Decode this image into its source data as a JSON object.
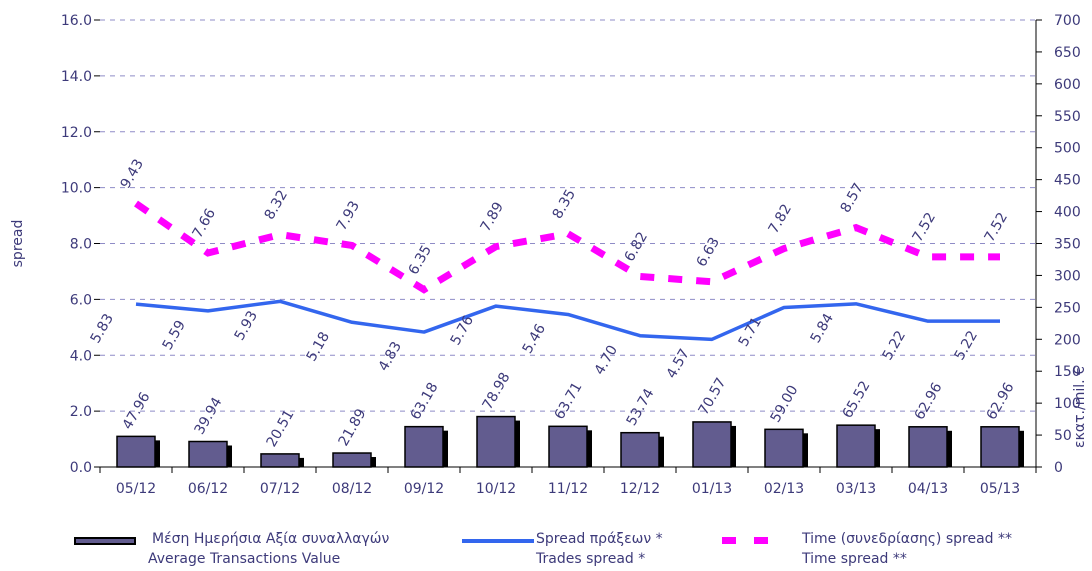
{
  "chart_data": {
    "type": "bar+line",
    "categories": [
      "05/12",
      "06/12",
      "07/12",
      "08/12",
      "09/12",
      "10/12",
      "11/12",
      "12/12",
      "01/13",
      "02/13",
      "03/13",
      "04/13",
      "05/13"
    ],
    "y_left_label": "spread",
    "y_left_ticks": [
      "0.0",
      "2.0",
      "4.0",
      "6.0",
      "8.0",
      "10.0",
      "12.0",
      "14.0",
      "16.0"
    ],
    "y_left_range": [
      0,
      16
    ],
    "y_right_label": "εκατ./mil. €",
    "y_right_ticks": [
      "0",
      "50",
      "100",
      "150",
      "200",
      "250",
      "300",
      "350",
      "400",
      "450",
      "500",
      "550",
      "600",
      "650",
      "700"
    ],
    "y_right_range": [
      0,
      700
    ],
    "grid": "horizontal dashed",
    "series": [
      {
        "name": "Μέση Ημερήσια Αξία συναλλαγών / Average Transactions Value",
        "kind": "bar",
        "axis": "right",
        "color": "#625c8f",
        "values": [
          47.96,
          39.94,
          20.51,
          21.89,
          63.18,
          78.98,
          63.71,
          53.74,
          70.57,
          59.0,
          65.52,
          62.96,
          62.96
        ],
        "labels": [
          "47.96",
          "39.94",
          "20.51",
          "21.89",
          "63.18",
          "78.98",
          "63.71",
          "53.74",
          "70.57",
          "59.00",
          "65.52",
          "62.96",
          "62.96"
        ]
      },
      {
        "name": "Spread πράξεων * / Trades spread *",
        "kind": "line",
        "axis": "left",
        "color": "#3366ee",
        "values": [
          5.83,
          5.59,
          5.93,
          5.18,
          4.83,
          5.76,
          5.46,
          4.7,
          4.57,
          5.71,
          5.84,
          5.22,
          5.22
        ],
        "labels": [
          "5.83",
          "5.59",
          "5.93",
          "5.18",
          "4.83",
          "5.76",
          "5.46",
          "4.70",
          "4.57",
          "5.71",
          "5.84",
          "5.22",
          "5.22"
        ]
      },
      {
        "name": "Time (συνεδρίασης) spread ** / Time spread **",
        "kind": "dashed-line",
        "axis": "left",
        "color": "#ff00ff",
        "values": [
          9.43,
          7.66,
          8.32,
          7.93,
          6.35,
          7.89,
          8.35,
          6.82,
          6.63,
          7.82,
          8.57,
          7.52,
          7.52
        ],
        "labels": [
          "9.43",
          "7.66",
          "8.32",
          "7.93",
          "6.35",
          "7.89",
          "8.35",
          "6.82",
          "6.63",
          "7.82",
          "8.57",
          "7.52",
          "7.52"
        ]
      }
    ]
  },
  "legend": {
    "bar_line1": "Μέση Ημερήσια Αξία συναλλαγών",
    "bar_line2": "Average Transactions Value",
    "line_line1": "Spread πράξεων *",
    "line_line2": "Trades spread *",
    "dash_line1": "Time  (συνεδρίασης) spread **",
    "dash_line2": "Time spread **"
  },
  "colors": {
    "bar_fill": "#625c8f",
    "bar_shadow": "#000000",
    "trades_line": "#3366ee",
    "time_line": "#ff00ff",
    "text": "#3d3a7a",
    "grid": "#8f8cc7"
  }
}
